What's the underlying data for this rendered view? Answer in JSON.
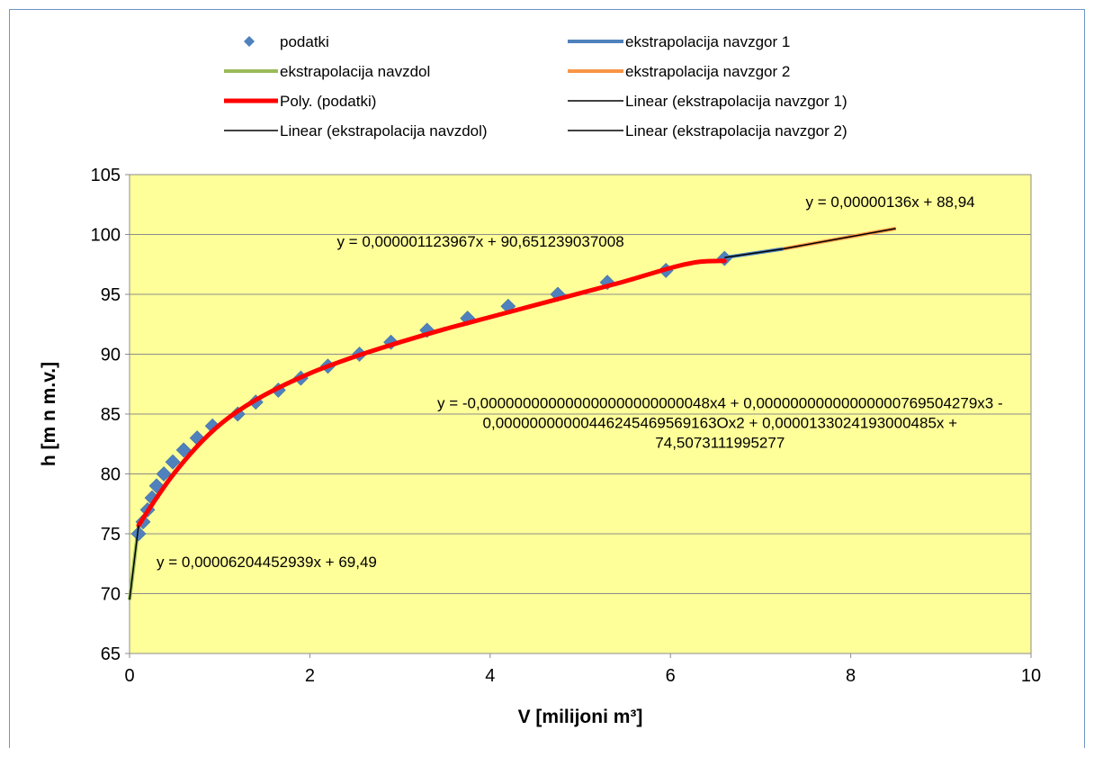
{
  "chart_data": {
    "type": "scatter",
    "xlabel": "V [milijoni m³]",
    "ylabel": "h [m n m.v.]",
    "xlim": [
      0,
      10
    ],
    "ylim": [
      65,
      105
    ],
    "x_ticks": [
      "0",
      "2",
      "4",
      "6",
      "8",
      "10"
    ],
    "y_ticks": [
      "65",
      "70",
      "75",
      "80",
      "85",
      "90",
      "95",
      "100",
      "105"
    ],
    "grid": "horizontal",
    "plot_background": "#ffff99",
    "legend_position": "top",
    "legend": [
      {
        "label": "podatki",
        "kind": "marker",
        "color": "#4f81bd"
      },
      {
        "label": "ekstrapolacija navzgor 1",
        "kind": "line",
        "color": "#4f81bd"
      },
      {
        "label": "ekstrapolacija navzdol",
        "kind": "line",
        "color": "#9bbb59"
      },
      {
        "label": "ekstrapolacija navzgor 2",
        "kind": "line",
        "color": "#f79646"
      },
      {
        "label": "Poly. (podatki)",
        "kind": "line",
        "color": "#ff0000"
      },
      {
        "label": "Linear (ekstrapolacija navzgor 1)",
        "kind": "line",
        "color": "#000000"
      },
      {
        "label": "Linear (ekstrapolacija navzdol)",
        "kind": "line",
        "color": "#000000"
      },
      {
        "label": "Linear (ekstrapolacija navzgor 2)",
        "kind": "line",
        "color": "#000000"
      }
    ],
    "series": [
      {
        "name": "podatki",
        "kind": "scatter",
        "color": "#4f81bd",
        "points": [
          [
            0.1,
            75
          ],
          [
            0.15,
            76
          ],
          [
            0.2,
            77
          ],
          [
            0.25,
            78
          ],
          [
            0.3,
            79
          ],
          [
            0.38,
            80
          ],
          [
            0.48,
            81
          ],
          [
            0.6,
            82
          ],
          [
            0.75,
            83
          ],
          [
            0.92,
            84
          ],
          [
            1.2,
            85
          ],
          [
            1.4,
            86
          ],
          [
            1.65,
            87
          ],
          [
            1.9,
            88
          ],
          [
            2.2,
            89
          ],
          [
            2.55,
            90
          ],
          [
            2.9,
            91
          ],
          [
            3.3,
            92
          ],
          [
            3.75,
            93
          ],
          [
            4.2,
            94
          ],
          [
            4.75,
            95
          ],
          [
            5.3,
            96
          ],
          [
            5.95,
            97
          ],
          [
            6.6,
            98
          ]
        ]
      },
      {
        "name": "ekstrapolacija navzgor 1",
        "kind": "line",
        "color": "#4f81bd",
        "points": [
          [
            6.6,
            98.07
          ],
          [
            7.25,
            98.8
          ]
        ]
      },
      {
        "name": "ekstrapolacija navzdol",
        "kind": "line",
        "color": "#9bbb59",
        "points": [
          [
            0,
            69.49
          ],
          [
            0.1,
            75.69
          ]
        ]
      },
      {
        "name": "ekstrapolacija navzgor 2",
        "kind": "line",
        "color": "#f79646",
        "points": [
          [
            7.25,
            98.8
          ],
          [
            8.5,
            100.5
          ]
        ]
      },
      {
        "name": "Poly. (podatki)",
        "kind": "curve",
        "color": "#ff0000",
        "points": [
          [
            0.1,
            75.7
          ],
          [
            0.3,
            78.0
          ],
          [
            0.5,
            80.1
          ],
          [
            0.8,
            82.7
          ],
          [
            1.1,
            84.7
          ],
          [
            1.5,
            86.6
          ],
          [
            2.0,
            88.4
          ],
          [
            2.5,
            89.8
          ],
          [
            3.0,
            91.0
          ],
          [
            3.5,
            92.1
          ],
          [
            4.0,
            93.1
          ],
          [
            4.5,
            94.1
          ],
          [
            5.0,
            95.1
          ],
          [
            5.5,
            96.1
          ],
          [
            6.0,
            97.2
          ],
          [
            6.3,
            97.7
          ],
          [
            6.6,
            97.8
          ]
        ]
      },
      {
        "name": "Linear (ekstrapolacija navzgor 1)",
        "kind": "line",
        "color": "#000000",
        "points": [
          [
            6.6,
            98.07
          ],
          [
            7.25,
            98.8
          ]
        ]
      },
      {
        "name": "Linear (ekstrapolacija navzdol)",
        "kind": "line",
        "color": "#000000",
        "points": [
          [
            0,
            69.49
          ],
          [
            0.1,
            75.69
          ]
        ]
      },
      {
        "name": "Linear (ekstrapolacija navzgor 2)",
        "kind": "line",
        "color": "#000000",
        "points": [
          [
            7.25,
            98.8
          ],
          [
            8.5,
            100.5
          ]
        ]
      }
    ],
    "annotations": [
      {
        "lines": [
          "y = 0,00000136x + 88,94"
        ],
        "x": 7.5,
        "y": 102.3,
        "anchor": "start"
      },
      {
        "lines": [
          "y = 0,000001123967x + 90,651239037008"
        ],
        "x": 2.3,
        "y": 99.0,
        "anchor": "start"
      },
      {
        "lines": [
          "y = -0,000000000000000000000000048x4 + 0,00000000000000000769504279x3 -",
          "0,00000000000446245469569163Ox2 + 0,0000133024193000485x +",
          "74,5073111995277"
        ],
        "x": 6.55,
        "y": 85.5,
        "anchor": "middle"
      },
      {
        "lines": [
          "y = 0,00006204452939x + 69,49"
        ],
        "x": 0.3,
        "y": 72.2,
        "anchor": "start"
      }
    ]
  }
}
